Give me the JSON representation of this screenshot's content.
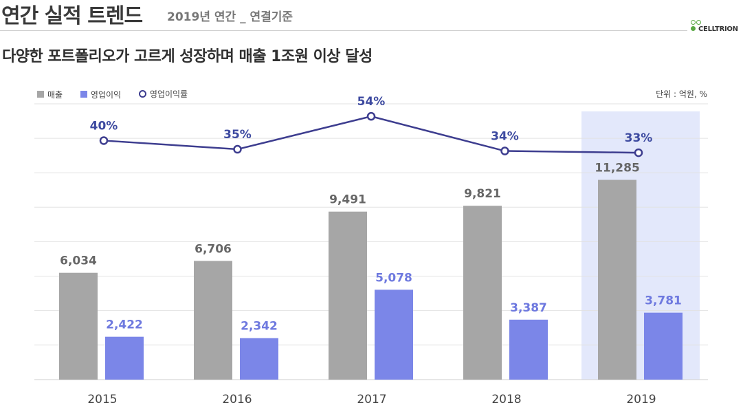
{
  "header": {
    "title": "연간 실적 트렌드",
    "subtitle": "2019년 연간 _ 연결기준",
    "logo_text": "CELLTRION"
  },
  "headline": "다양한 포트폴리오가 고르게 성장하며 매출 1조원 이상 달성",
  "colors": {
    "revenue": "#a6a6a6",
    "operating_profit": "#7b86e8",
    "margin_line": "#3d3d8f",
    "highlight": "#e3e8fb",
    "revenue_label": "#666666",
    "profit_label": "#6e79df"
  },
  "chart_data": {
    "type": "bar",
    "categories": [
      "2015",
      "2016",
      "2017",
      "2018",
      "2019"
    ],
    "series": [
      {
        "name": "매출",
        "type": "bar",
        "values": [
          6034,
          6706,
          9491,
          9821,
          11285
        ],
        "labels": [
          "6,034",
          "6,706",
          "9,491",
          "9,821",
          "11,285"
        ]
      },
      {
        "name": "영업이익",
        "type": "bar",
        "values": [
          2422,
          2342,
          5078,
          3387,
          3781
        ],
        "labels": [
          "2,422",
          "2,342",
          "5,078",
          "3,387",
          "3,781"
        ]
      },
      {
        "name": "영업이익률",
        "type": "line",
        "values": [
          40,
          35,
          54,
          34,
          33
        ],
        "labels": [
          "40%",
          "35%",
          "54%",
          "34%",
          "33%"
        ]
      }
    ],
    "unit_label": "단위 : 억원, %",
    "highlighted_category": "2019",
    "grid": true,
    "legend_position": "top-left"
  }
}
